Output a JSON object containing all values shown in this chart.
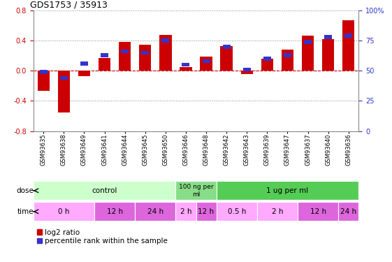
{
  "title": "GDS1753 / 35913",
  "samples": [
    "GSM93635",
    "GSM93638",
    "GSM93649",
    "GSM93641",
    "GSM93644",
    "GSM93645",
    "GSM93650",
    "GSM93646",
    "GSM93648",
    "GSM93642",
    "GSM93643",
    "GSM93639",
    "GSM93647",
    "GSM93637",
    "GSM93640",
    "GSM93636"
  ],
  "log2_ratio": [
    -0.27,
    -0.55,
    -0.07,
    0.17,
    0.38,
    0.35,
    0.48,
    0.05,
    0.19,
    0.33,
    -0.04,
    0.16,
    0.28,
    0.47,
    0.42,
    0.67
  ],
  "percentile": [
    49,
    44,
    56,
    63,
    66,
    65,
    75,
    55,
    58,
    70,
    51,
    60,
    63,
    74,
    78,
    79
  ],
  "ylim_left": [
    -0.8,
    0.8
  ],
  "ylim_right": [
    0,
    100
  ],
  "yticks_left": [
    -0.8,
    -0.4,
    0.0,
    0.4,
    0.8
  ],
  "yticks_right": [
    0,
    25,
    50,
    75,
    100
  ],
  "bar_color": "#cc0000",
  "dot_color": "#3333cc",
  "dose_groups": [
    {
      "label": "control",
      "start": 0,
      "end": 7,
      "color": "#ccffcc"
    },
    {
      "label": "100 ng per\nml",
      "start": 7,
      "end": 9,
      "color": "#88dd88"
    },
    {
      "label": "1 ug per ml",
      "start": 9,
      "end": 16,
      "color": "#55cc55"
    }
  ],
  "time_groups": [
    {
      "label": "0 h",
      "start": 0,
      "end": 3,
      "color": "#ffaaff"
    },
    {
      "label": "12 h",
      "start": 3,
      "end": 5,
      "color": "#dd66dd"
    },
    {
      "label": "24 h",
      "start": 5,
      "end": 7,
      "color": "#dd66dd"
    },
    {
      "label": "2 h",
      "start": 7,
      "end": 8,
      "color": "#ffaaff"
    },
    {
      "label": "12 h",
      "start": 8,
      "end": 9,
      "color": "#dd66dd"
    },
    {
      "label": "0.5 h",
      "start": 9,
      "end": 11,
      "color": "#ffaaff"
    },
    {
      "label": "2 h",
      "start": 11,
      "end": 13,
      "color": "#ffaaff"
    },
    {
      "label": "12 h",
      "start": 13,
      "end": 15,
      "color": "#dd66dd"
    },
    {
      "label": "24 h",
      "start": 15,
      "end": 16,
      "color": "#dd66dd"
    }
  ],
  "legend_log2": "log2 ratio",
  "legend_pct": "percentile rank within the sample",
  "dose_label": "dose",
  "time_label": "time",
  "bg_color": "#f0f0f0",
  "chart_bg": "#ffffff"
}
